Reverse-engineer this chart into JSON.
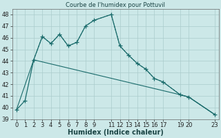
{
  "title": "Courbe de l'humidex pour Pottuvil",
  "xlabel": "Humidex (Indice chaleur)",
  "bg_color": "#cce8e8",
  "grid_color": "#aacccc",
  "line_color": "#1a6b6b",
  "ylim": [
    39,
    48.5
  ],
  "xlim": [
    -0.5,
    23.5
  ],
  "yticks": [
    39,
    40,
    41,
    42,
    43,
    44,
    45,
    46,
    47,
    48
  ],
  "xtick_pos": [
    0,
    1,
    2,
    3,
    4,
    5,
    6,
    7,
    8,
    9,
    11,
    12,
    13,
    14,
    15,
    16,
    17,
    19,
    20,
    23
  ],
  "xtick_labels": [
    "0",
    "1",
    "2",
    "3",
    "4",
    "5",
    "6",
    "7",
    "8",
    "9",
    "11",
    "12",
    "13",
    "14",
    "15",
    "16",
    "17",
    "19",
    "20",
    "23"
  ],
  "line1_x": [
    0,
    1,
    2,
    3,
    4,
    5,
    6,
    7,
    8,
    9,
    11,
    12,
    13,
    14,
    15,
    16,
    17,
    19,
    20,
    23
  ],
  "line1_y": [
    39.8,
    40.6,
    44.1,
    46.1,
    45.5,
    46.3,
    45.3,
    45.6,
    47.0,
    47.5,
    48.0,
    45.3,
    44.5,
    43.8,
    43.3,
    42.5,
    42.2,
    41.1,
    40.9,
    39.4
  ],
  "line2_x": [
    2,
    3,
    4,
    5,
    6,
    7,
    8,
    9,
    11,
    12,
    13,
    14,
    15,
    16,
    17,
    19,
    20,
    23
  ],
  "line2_y": [
    44.1,
    46.1,
    45.5,
    46.3,
    45.3,
    45.6,
    47.0,
    47.5,
    48.0,
    45.3,
    44.5,
    43.8,
    43.3,
    42.5,
    42.2,
    41.1,
    40.9,
    39.4
  ],
  "line3_x": [
    0,
    2,
    19,
    20,
    23
  ],
  "line3_y": [
    39.8,
    44.1,
    41.1,
    40.9,
    39.4
  ]
}
